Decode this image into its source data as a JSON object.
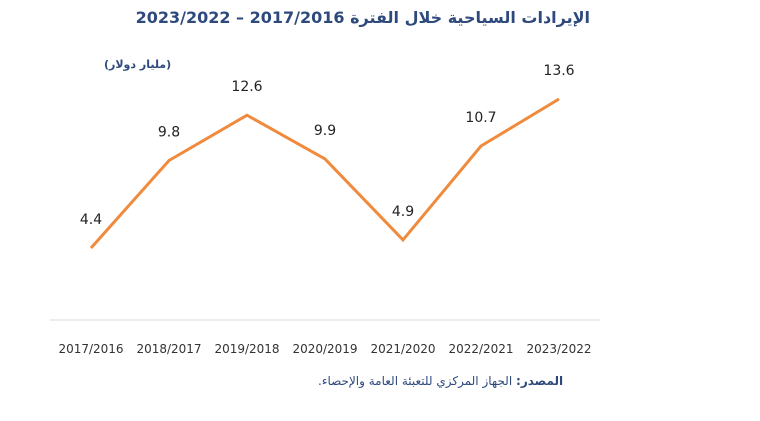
{
  "chart_data": {
    "type": "line",
    "title": "الإيرادات السياحية خلال الفترة 2017/2016 – 2023/2022",
    "unit_label": "(مليار دولار)",
    "categories": [
      "2017/2016",
      "2018/2017",
      "2019/2018",
      "2020/2019",
      "2021/2020",
      "2022/2021",
      "2023/2022"
    ],
    "series": [
      {
        "values": [
          4.4,
          9.8,
          12.6,
          9.9,
          4.9,
          10.7,
          13.6
        ],
        "color": "#f08a3c"
      }
    ],
    "grid": false,
    "axis_line_color": "#d9d9d9"
  },
  "source": {
    "label": "المصدر:",
    "text": "الجهاز المركزي للتعبئة العامة والإحصاء."
  }
}
